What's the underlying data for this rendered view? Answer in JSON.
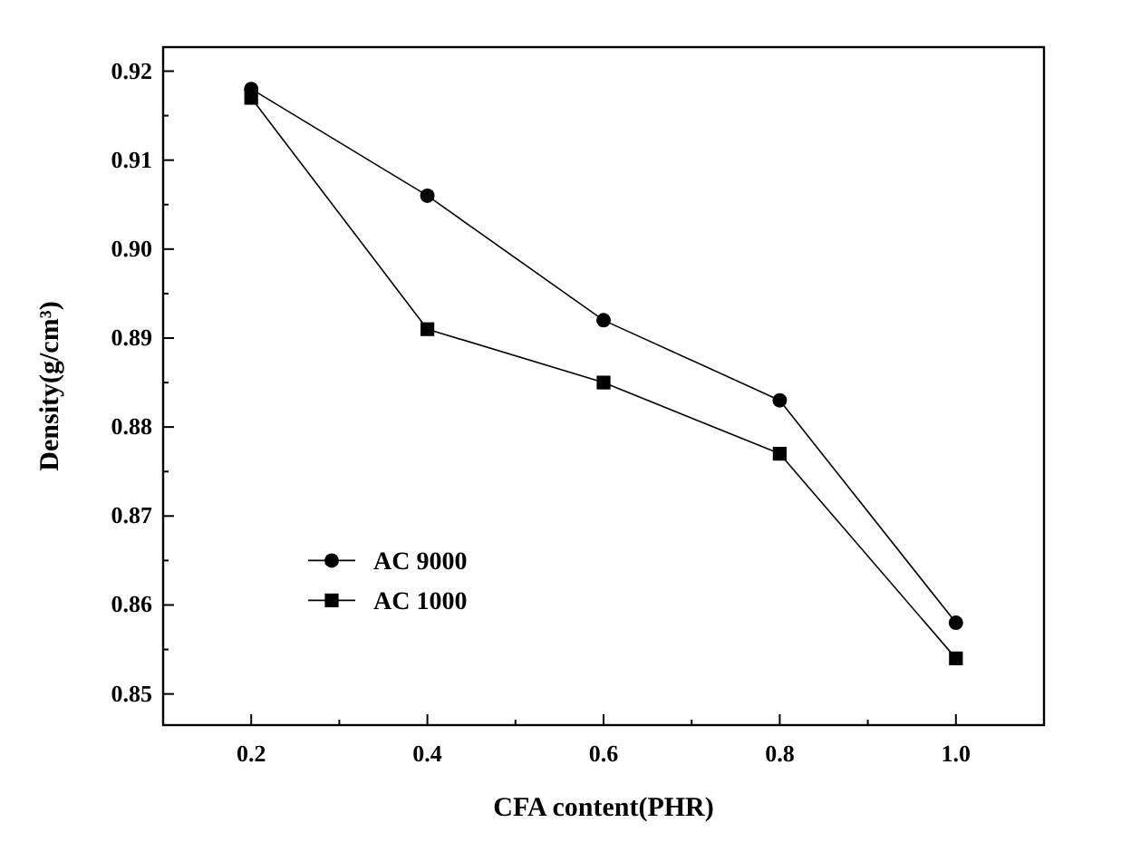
{
  "chart_data": {
    "type": "line",
    "xlabel": "CFA content(PHR)",
    "ylabel": "Density(g/cm³)",
    "x": [
      0.2,
      0.4,
      0.6,
      0.8,
      1.0
    ],
    "series": [
      {
        "name": "AC 9000",
        "color": "#000000",
        "marker": "circle",
        "values": [
          0.918,
          0.906,
          0.892,
          0.883,
          0.858
        ]
      },
      {
        "name": "AC 1000",
        "color": "#000000",
        "marker": "square",
        "values": [
          0.917,
          0.891,
          0.885,
          0.877,
          0.854
        ]
      }
    ],
    "xlim": [
      0.1,
      1.1
    ],
    "xticks": [
      {
        "value": 0.2,
        "label": "0.2"
      },
      {
        "value": 0.4,
        "label": "0.4"
      },
      {
        "value": 0.6,
        "label": "0.6"
      },
      {
        "value": 0.8,
        "label": "0.8"
      },
      {
        "value": 1.0,
        "label": "1.0"
      }
    ],
    "ylim": [
      0.8465,
      0.9227
    ],
    "yticks": [
      {
        "value": 0.85,
        "label": "0.85"
      },
      {
        "value": 0.86,
        "label": "0.86"
      },
      {
        "value": 0.87,
        "label": "0.87"
      },
      {
        "value": 0.88,
        "label": "0.88"
      },
      {
        "value": 0.89,
        "label": "0.89"
      },
      {
        "value": 0.9,
        "label": "0.90"
      },
      {
        "value": 0.91,
        "label": "0.91"
      },
      {
        "value": 0.92,
        "label": "0.92"
      }
    ],
    "legend": "left",
    "line_style": "solid"
  }
}
